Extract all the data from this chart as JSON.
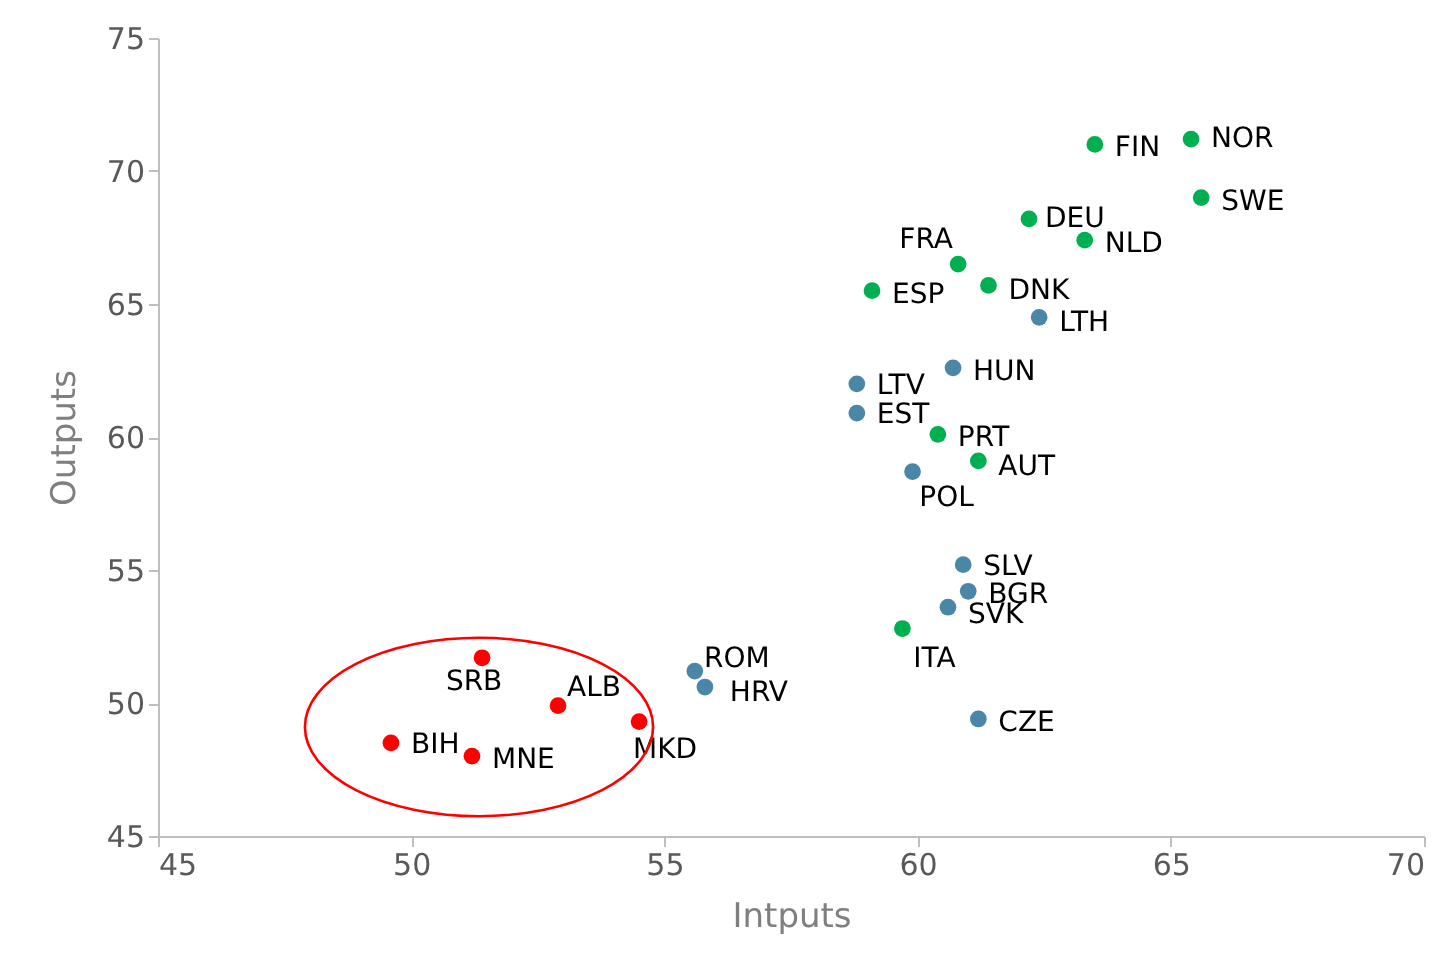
{
  "chart_data": {
    "type": "scatter",
    "xlabel": "Intputs",
    "ylabel": "Outputs",
    "xlim": [
      45,
      70
    ],
    "ylim": [
      45,
      75
    ],
    "xticks": [
      45,
      50,
      55,
      60,
      65,
      70
    ],
    "yticks": [
      45,
      50,
      55,
      60,
      65,
      70,
      75
    ],
    "grid": false,
    "marker": "circle",
    "series": [
      {
        "color": "#00b050",
        "x": [
          63.5,
          65.4,
          65.6,
          62.2,
          63.3,
          60.8,
          61.4,
          59.1,
          60.4,
          61.2,
          59.7
        ],
        "values": [
          71.0,
          71.2,
          69.0,
          68.2,
          67.4,
          66.5,
          65.7,
          65.5,
          60.1,
          59.1,
          52.8
        ]
      },
      {
        "color": "#4a86a8",
        "x": [
          62.4,
          60.7,
          58.8,
          58.8,
          59.9,
          60.9,
          61.0,
          60.6,
          61.2,
          55.6,
          55.8
        ],
        "values": [
          64.5,
          62.6,
          62.0,
          60.9,
          58.7,
          55.2,
          54.2,
          53.6,
          49.4,
          51.2,
          50.6
        ]
      },
      {
        "color": "#ff0000",
        "x": [
          51.4,
          52.9,
          54.5,
          49.6,
          51.2
        ],
        "values": [
          51.7,
          49.9,
          49.3,
          48.5,
          48.0
        ]
      }
    ],
    "annotations": [
      {
        "text": "FIN",
        "x": 63.5,
        "y": 71.0
      },
      {
        "text": "NOR",
        "x": 65.4,
        "y": 71.2
      },
      {
        "text": "SWE",
        "x": 65.6,
        "y": 69.0
      },
      {
        "text": "DEU",
        "x": 62.2,
        "y": 68.2
      },
      {
        "text": "NLD",
        "x": 63.3,
        "y": 67.4
      },
      {
        "text": "FRA",
        "x": 60.8,
        "y": 66.5
      },
      {
        "text": "DNK",
        "x": 61.4,
        "y": 65.7
      },
      {
        "text": "ESP",
        "x": 59.1,
        "y": 65.5
      },
      {
        "text": "PRT",
        "x": 60.4,
        "y": 60.1
      },
      {
        "text": "AUT",
        "x": 61.2,
        "y": 59.1
      },
      {
        "text": "ITA",
        "x": 59.7,
        "y": 52.8
      },
      {
        "text": "LTH",
        "x": 62.4,
        "y": 64.5
      },
      {
        "text": "HUN",
        "x": 60.7,
        "y": 62.6
      },
      {
        "text": "LTV",
        "x": 58.8,
        "y": 62.0
      },
      {
        "text": "EST",
        "x": 58.8,
        "y": 60.9
      },
      {
        "text": "POL",
        "x": 59.9,
        "y": 58.7
      },
      {
        "text": "SLV",
        "x": 60.9,
        "y": 55.2
      },
      {
        "text": "BGR",
        "x": 61.0,
        "y": 54.2
      },
      {
        "text": "SVK",
        "x": 60.6,
        "y": 53.6
      },
      {
        "text": "CZE",
        "x": 61.2,
        "y": 49.4
      },
      {
        "text": "ROM",
        "x": 55.6,
        "y": 51.2
      },
      {
        "text": "HRV",
        "x": 55.8,
        "y": 50.6
      },
      {
        "text": "SRB",
        "x": 51.4,
        "y": 51.7
      },
      {
        "text": "ALB",
        "x": 52.9,
        "y": 49.9
      },
      {
        "text": "MKD",
        "x": 54.5,
        "y": 49.3
      },
      {
        "text": "BIH",
        "x": 49.6,
        "y": 48.5
      },
      {
        "text": "MNE",
        "x": 51.2,
        "y": 48.0
      }
    ]
  }
}
